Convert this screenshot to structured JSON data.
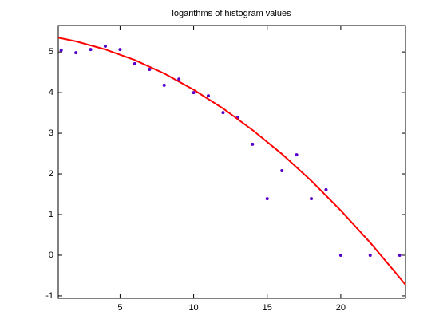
{
  "chart_data": {
    "type": "scatter",
    "title": "logarithms of histogram values",
    "xlim": [
      0.8,
      24.4
    ],
    "ylim": [
      -1.06,
      5.65
    ],
    "xticks": [
      5,
      10,
      15,
      20
    ],
    "yticks": [
      -1,
      0,
      1,
      2,
      3,
      4,
      5
    ],
    "series": [
      {
        "type": "scatter",
        "color": "#5500cc",
        "x": [
          1,
          2,
          3,
          4,
          5,
          6,
          7,
          8,
          9,
          10,
          11,
          12,
          13,
          14,
          15,
          16,
          17,
          18,
          19,
          20,
          22,
          24
        ],
        "values": [
          5.04,
          4.98,
          5.06,
          5.14,
          5.06,
          4.71,
          4.57,
          4.18,
          4.33,
          4.0,
          3.92,
          3.51,
          3.39,
          2.73,
          1.39,
          2.08,
          2.47,
          1.39,
          1.61,
          0,
          0,
          0
        ]
      },
      {
        "type": "line",
        "color": "#ff0000",
        "x": [
          0.8,
          2,
          4,
          6,
          8,
          10,
          12,
          14,
          16,
          18,
          20,
          22,
          24,
          24.4
        ],
        "values": [
          5.35,
          5.26,
          5.06,
          4.8,
          4.47,
          4.07,
          3.61,
          3.08,
          2.49,
          1.83,
          1.1,
          0.31,
          -0.55,
          -0.73
        ]
      }
    ]
  }
}
